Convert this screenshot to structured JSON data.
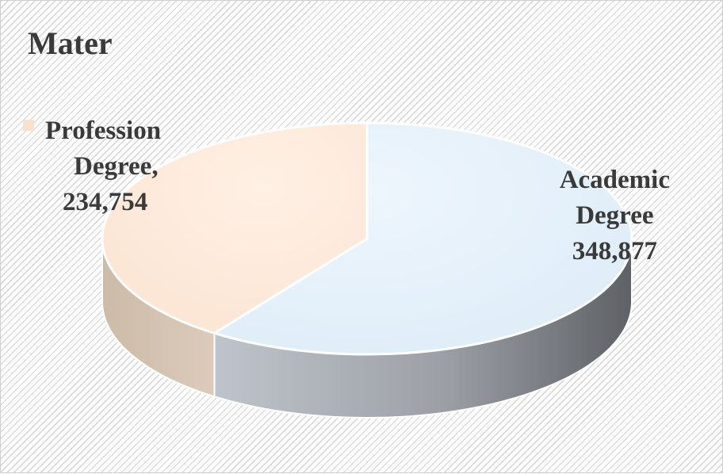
{
  "chart_data": {
    "type": "pie",
    "title": "Mater",
    "slices": [
      {
        "label_lines": [
          "Academic",
          "Degree"
        ],
        "value": 348877,
        "value_text": "348,877",
        "color": "#e1effa",
        "side_color": "#8c9096"
      },
      {
        "label_lines": [
          "Profession",
          "Degree,"
        ],
        "value": 234754,
        "value_text": "234,754",
        "color": "#fde8d8",
        "side_color": "#cfbfb0"
      }
    ],
    "legend": {
      "position": "left",
      "marker_color": "#fce0cc"
    },
    "style": "3d"
  }
}
